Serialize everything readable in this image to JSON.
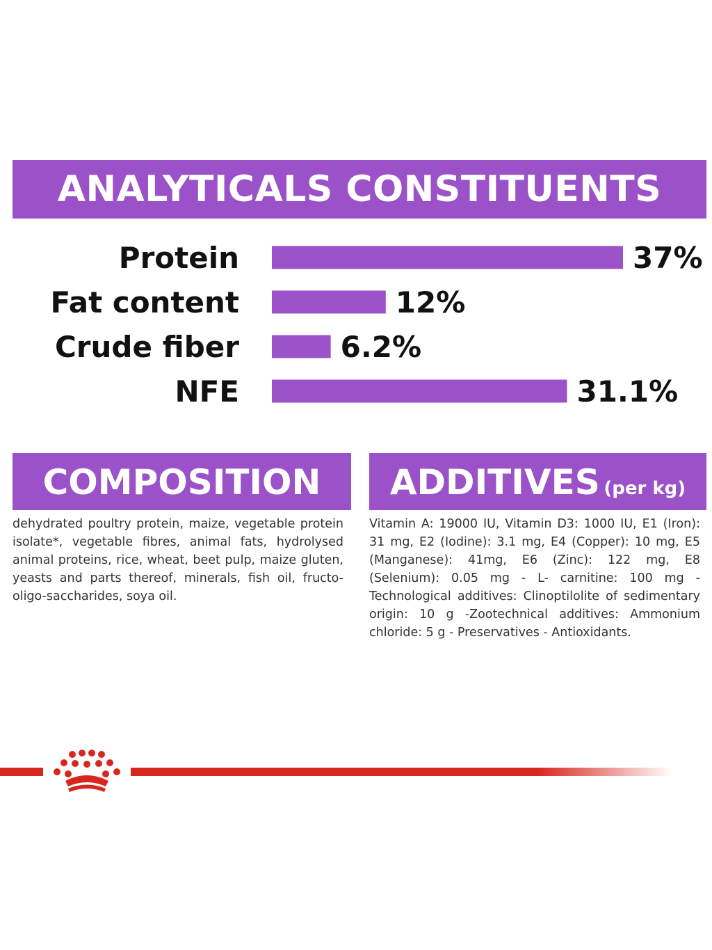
{
  "colors": {
    "accent": "#9b51c8",
    "brand_red": "#d7261e",
    "text": "#111111"
  },
  "header": {
    "title": "ANALYTICALS CONSTITUENTS"
  },
  "chart_data": {
    "type": "bar",
    "orientation": "horizontal",
    "title": "ANALYTICALS CONSTITUENTS",
    "categories": [
      "Protein",
      "Fat content",
      "Crude fiber",
      "NFE"
    ],
    "values": [
      37,
      12,
      6.2,
      31.1
    ],
    "value_labels": [
      "37%",
      "12%",
      "6.2%",
      "31.1%"
    ],
    "unit": "%",
    "xlim": [
      0,
      37
    ],
    "grid": false,
    "legend": "none"
  },
  "composition": {
    "heading": "COMPOSITION",
    "text": "dehydrated poultry protein, maize, vegetable protein isolate*, vegetable fibres, animal fats, hydrolysed animal proteins, rice, wheat, beet pulp, maize gluten, yeasts and parts thereof, minerals, fish oil, fructo-oligo-saccharides, soya oil."
  },
  "additives": {
    "heading": "ADDITIVES",
    "heading_suffix": "(per kg)",
    "text": "Vitamin A: 19000 IU, Vitamin D3: 1000 IU, E1 (Iron): 31 mg, E2 (Iodine): 3.1 mg, E4 (Copper): 10 mg, E5 (Manganese): 41mg, E6 (Zinc): 122 mg, E8 (Selenium): 0.05 mg - L- carnitine: 100 mg - Technological additives: Clinoptilolite of sedimentary origin: 10 g -Zootechnical additives: Ammonium chloride: 5 g - Preservatives - Antioxidants."
  },
  "footer": {
    "logo_icon": "crown-icon"
  }
}
